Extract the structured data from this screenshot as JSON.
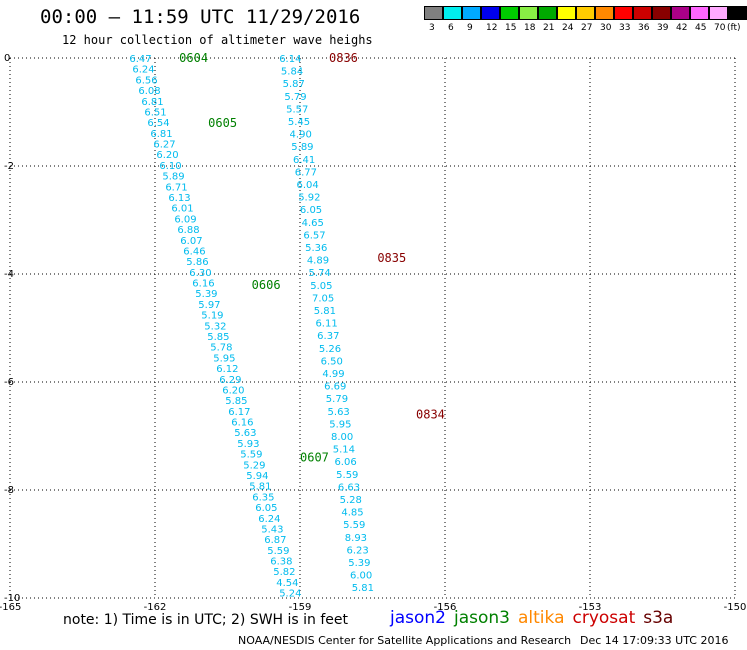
{
  "title": "00:00 – 11:59 UTC 11/29/2016",
  "subtitle": "12 hour collection of altimeter wave heighs",
  "note": "note: 1) Time is in UTC; 2) SWH is in feet",
  "legend": [
    {
      "name": "jason2",
      "color": "#0000ff"
    },
    {
      "name": "jason3",
      "color": "#008000"
    },
    {
      "name": "altika",
      "color": "#ff8800"
    },
    {
      "name": "cryosat",
      "color": "#cc0000"
    },
    {
      "name": "s3a",
      "color": "#660000"
    }
  ],
  "credit": "NOAA/NESDIS Center for Satellite Applications and Research",
  "credit_date": "Dec 14 17:09:33 UTC 2016",
  "colorbar": {
    "colors": [
      "#808080",
      "#00eeee",
      "#00aaff",
      "#0000ee",
      "#00cc00",
      "#88ee44",
      "#00aa00",
      "#ffff00",
      "#ffcc00",
      "#ff8800",
      "#ff0000",
      "#cc0000",
      "#880000",
      "#aa0088",
      "#ff66ff",
      "#ffaaff",
      "#000000"
    ],
    "labels": [
      "3",
      "6",
      "9",
      "12",
      "15",
      "18",
      "21",
      "24",
      "27",
      "30",
      "33",
      "36",
      "39",
      "42",
      "45",
      "70",
      "(ft)"
    ]
  },
  "chart_data": {
    "type": "scatter",
    "xlim": [
      -165,
      -150
    ],
    "ylim": [
      -10,
      0
    ],
    "xticks": [
      -165,
      -162,
      -159,
      -156,
      -153,
      -150
    ],
    "yticks": [
      0,
      -2,
      -4,
      -6,
      -8,
      -10
    ],
    "grid": true,
    "tracks": [
      {
        "satellite": "jason3",
        "color": "#00bbee",
        "start": [
          -162.3,
          0.0
        ],
        "end": [
          -159.2,
          -9.9
        ],
        "values": [
          "6.47",
          "6.24",
          "6.56",
          "6.08",
          "6.81",
          "6.51",
          "6.54",
          "6.81",
          "6.27",
          "6.20",
          "6.10",
          "5.89",
          "6.71",
          "6.13",
          "6.01",
          "6.09",
          "6.88",
          "6.07",
          "6.46",
          "5.86",
          "6.30",
          "6.16",
          "5.39",
          "5.97",
          "5.19",
          "5.32",
          "5.85",
          "5.78",
          "5.95",
          "6.12",
          "6.29",
          "6.20",
          "5.85",
          "6.17",
          "6.16",
          "5.63",
          "5.93",
          "5.59",
          "5.29",
          "5.94",
          "5.81",
          "6.35",
          "6.05",
          "6.24",
          "5.43",
          "6.87",
          "5.59",
          "6.38",
          "5.82",
          "4.54",
          "5.24"
        ],
        "time_labels": [
          {
            "text": "0604",
            "lon": -161.5,
            "lat": 0.0
          },
          {
            "text": "0605",
            "lon": -160.9,
            "lat": -1.2
          },
          {
            "text": "0606",
            "lon": -160.0,
            "lat": -4.2
          },
          {
            "text": "0607",
            "lon": -159.0,
            "lat": -7.4
          }
        ],
        "time_color": "#008000"
      },
      {
        "satellite": "s3a",
        "color": "#00bbee",
        "start": [
          -159.2,
          0.0
        ],
        "end": [
          -157.7,
          -9.8
        ],
        "values": [
          "6.14",
          "5.84",
          "5.87",
          "5.79",
          "5.57",
          "5.45",
          "4.90",
          "5.89",
          "6.41",
          "6.77",
          "6.04",
          "5.92",
          "6.05",
          "4.65",
          "6.57",
          "5.36",
          "4.89",
          "5.74",
          "5.05",
          "7.05",
          "5.81",
          "6.11",
          "6.37",
          "5.26",
          "6.50",
          "4.99",
          "6.69",
          "5.79",
          "5.63",
          "5.95",
          "8.00",
          "5.14",
          "6.06",
          "5.59",
          "6.63",
          "5.28",
          "4.85",
          "5.59",
          "8.93",
          "6.23",
          "5.39",
          "6.00",
          "5.81"
        ],
        "time_labels": [
          {
            "text": "0836",
            "lon": -158.4,
            "lat": 0.0
          },
          {
            "text": "0835",
            "lon": -157.4,
            "lat": -3.7
          },
          {
            "text": "0834",
            "lon": -156.6,
            "lat": -6.6
          }
        ],
        "time_color": "#880000"
      }
    ]
  }
}
